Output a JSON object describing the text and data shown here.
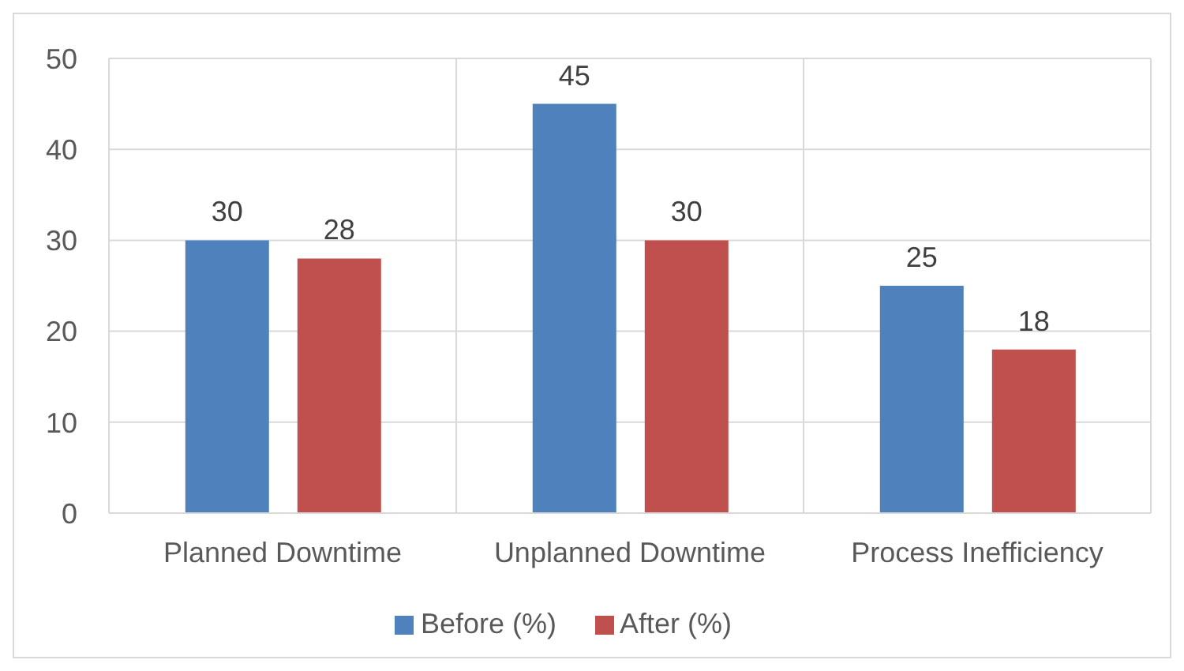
{
  "chart_data": {
    "type": "bar",
    "categories": [
      "Planned Downtime",
      "Unplanned Downtime",
      "Process Inefficiency"
    ],
    "series": [
      {
        "name": "Before (%)",
        "color": "#4f81bd",
        "values": [
          30,
          45,
          25
        ]
      },
      {
        "name": "After (%)",
        "color": "#c0504d",
        "values": [
          28,
          30,
          18
        ]
      }
    ],
    "ylim": [
      0,
      50
    ],
    "yticks": [
      0,
      10,
      20,
      30,
      40,
      50
    ],
    "grid": true,
    "legend": "bottom",
    "data_labels": true
  }
}
